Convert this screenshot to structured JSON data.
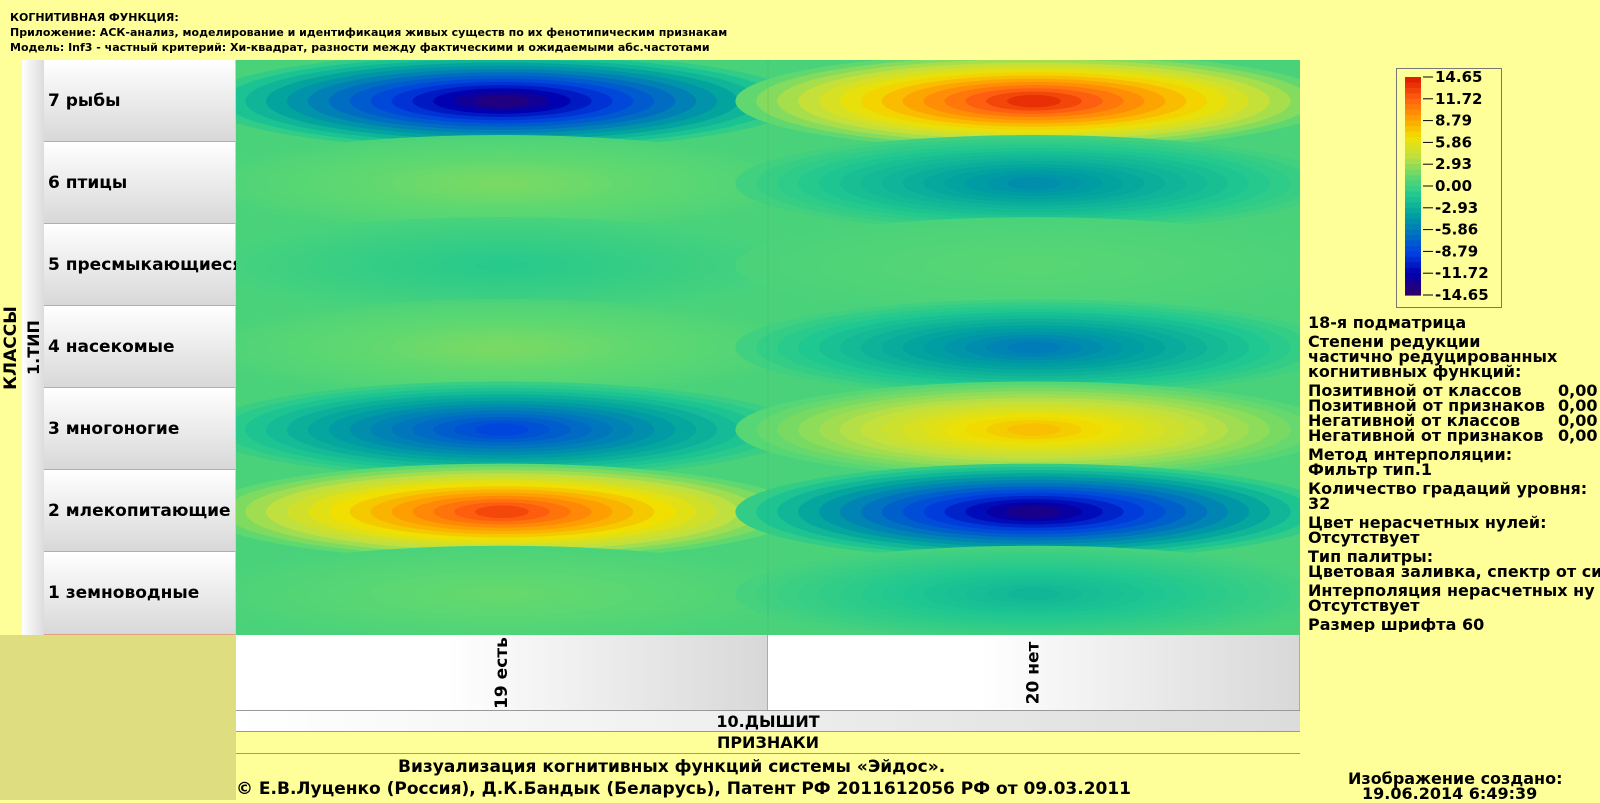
{
  "header": {
    "line1": "КОГНИТИВНАЯ ФУНКЦИЯ:",
    "line2": "Приложение: АСК-анализ, моделирование и идентификация живых существ по их фенотипическим признакам",
    "line3": "Модель: Inf3 - частный критерий: Хи-квадрат, разности между фактическими и ожидаемыми абс.частотами"
  },
  "axis": {
    "classes_label": "КЛАССЫ",
    "class_group": "1.ТИП",
    "feature_group": "10.ДЫШИТ",
    "features_label": "ПРИЗНАКИ"
  },
  "info": {
    "submatrix": "18-я подматрица",
    "reduction_title": "Степени редукции",
    "reduction_line2": "частично редуцированных",
    "reduction_line3": "когнитивных функций:",
    "reductions": [
      {
        "label": "Позитивной от классов",
        "value": "0,00"
      },
      {
        "label": "Позитивной от признаков",
        "value": "0,00"
      },
      {
        "label": "Негативной от классов",
        "value": "0,00"
      },
      {
        "label": "Негативной от признаков",
        "value": "0,00"
      }
    ],
    "interp_label": "Метод интерполяции:",
    "interp_value": "Фильтр тип.1",
    "grad_label": "Количество градаций уровня:",
    "grad_value": "32",
    "zero_color_label": "Цвет нерасчетных нулей:",
    "zero_color_value": "Отсутствует",
    "palette_label": "Тип палитры:",
    "palette_value": "Цветовая заливка, спектр от си",
    "zero_interp_label": "Интерполяция нерасчетных ну",
    "zero_interp_value": "Отсутствует",
    "font_size": "Размер шрифта 60"
  },
  "footer": {
    "line1": "Визуализация когнитивных функций системы «Эйдос».",
    "line2": "© Е.В.Луценко (Россия), Д.К.Бандык (Беларусь), Патент РФ  2011612056 РФ от 09.03.2011",
    "created_label": "Изображение создано:",
    "created_value": "19.06.2014   6:49:39"
  },
  "chart_data": {
    "type": "heatmap",
    "rows": [
      "7 рыбы",
      "6 птицы",
      "5 пресмыкающиеся",
      "4 насекомые",
      "3 многоногие",
      "2 млекопитающие",
      "1 земноводные"
    ],
    "columns": [
      "19 есть",
      "20 нет"
    ],
    "values": [
      [
        -14.0,
        14.0
      ],
      [
        2.0,
        -5.0
      ],
      [
        -1.0,
        1.0
      ],
      [
        2.0,
        -6.0
      ],
      [
        -9.0,
        8.0
      ],
      [
        13.0,
        -13.5
      ],
      [
        1.5,
        -2.5
      ]
    ],
    "legend_ticks": [
      "14.65",
      "11.72",
      "8.79",
      "5.86",
      "2.93",
      "0.00",
      "-2.93",
      "-5.86",
      "-8.79",
      "-11.72",
      "-14.65"
    ],
    "zmin": -14.65,
    "zmax": 14.65,
    "colorscale": [
      "#2a0070",
      "#0000b0",
      "#0040e0",
      "#0070c0",
      "#00a0a0",
      "#20c890",
      "#60d870",
      "#c0e040",
      "#f0e000",
      "#ffa000",
      "#ff6010",
      "#e02000"
    ]
  }
}
